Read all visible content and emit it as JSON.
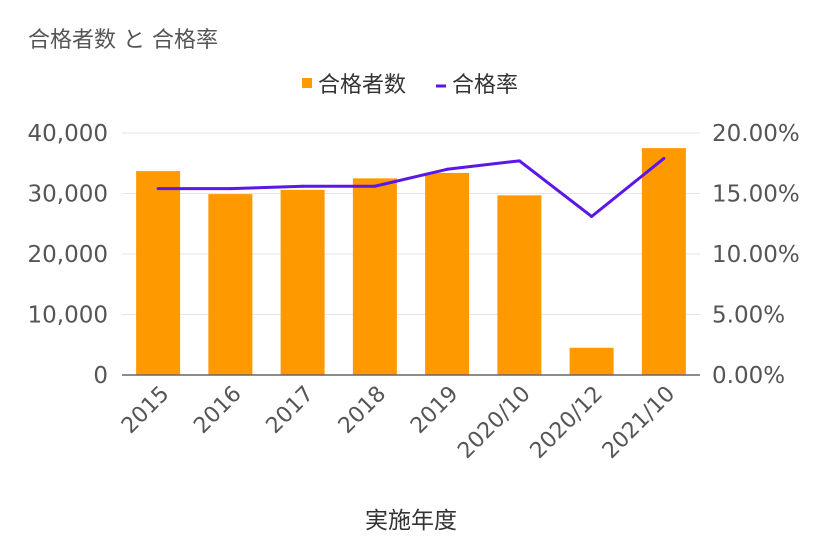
{
  "colors": {
    "bar": "#FF9900",
    "line": "#5B16E8",
    "grid": "#E6E6E6",
    "axis": "#555555",
    "text": "#555555"
  },
  "chart_data": {
    "type": "bar",
    "title": "合格者数 と 合格率",
    "xlabel": "実施年度",
    "categories": [
      "2015",
      "2016",
      "2017",
      "2018",
      "2019",
      "2020/10",
      "2020/12",
      "2021/10"
    ],
    "series": [
      {
        "name": "合格者数",
        "type": "bar",
        "axis": "left",
        "values": [
          33700,
          29900,
          30600,
          32500,
          33400,
          29700,
          4500,
          37500
        ]
      },
      {
        "name": "合格率",
        "type": "line",
        "axis": "right",
        "values": [
          0.154,
          0.154,
          0.156,
          0.156,
          0.17,
          0.177,
          0.131,
          0.179
        ]
      }
    ],
    "y_left": {
      "range": [
        0,
        40000
      ],
      "ticks": [
        0,
        10000,
        20000,
        30000,
        40000
      ],
      "tick_labels": [
        "0",
        "10,000",
        "20,000",
        "30,000",
        "40,000"
      ]
    },
    "y_right": {
      "range": [
        0,
        0.2
      ],
      "ticks": [
        0,
        0.05,
        0.1,
        0.15,
        0.2
      ],
      "tick_labels": [
        "0.00%",
        "5.00%",
        "10.00%",
        "15.00%",
        "20.00%"
      ]
    },
    "grid": true,
    "legend": "top-center",
    "legend_labels": [
      "合格者数",
      "合格率"
    ]
  }
}
